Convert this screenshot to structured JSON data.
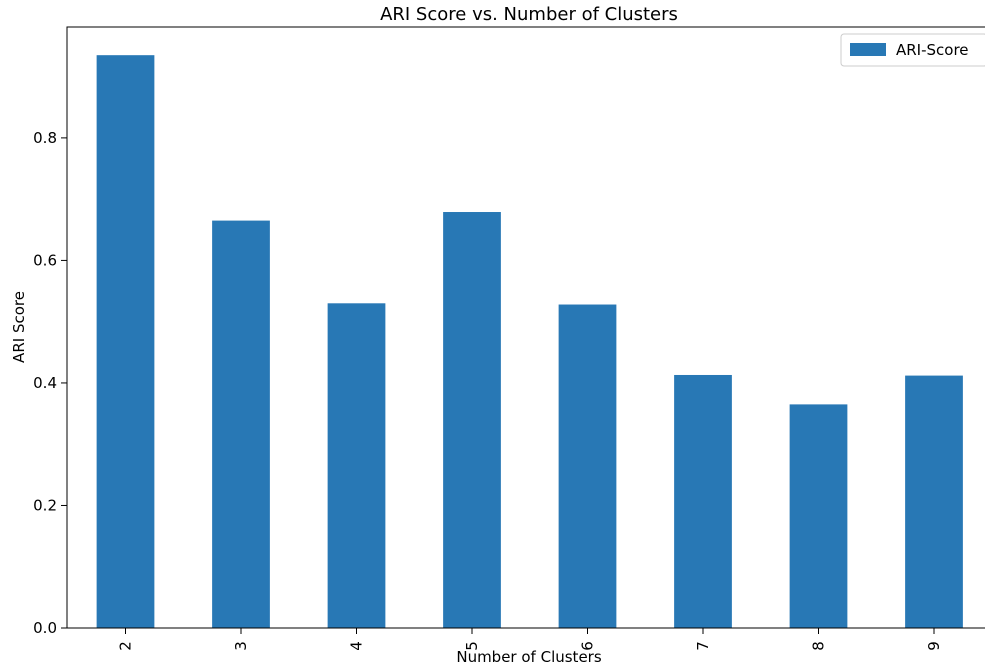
{
  "chart_data": {
    "type": "bar",
    "title": "ARI Score vs. Number of Clusters",
    "xlabel": "Number of Clusters",
    "ylabel": "ARI Score",
    "categories": [
      "2",
      "3",
      "4",
      "5",
      "6",
      "7",
      "8",
      "9"
    ],
    "series": [
      {
        "name": "ARI-Score",
        "values": [
          0.935,
          0.665,
          0.53,
          0.679,
          0.528,
          0.413,
          0.365,
          0.412
        ]
      }
    ],
    "ylim": [
      0,
      0.981
    ],
    "yticks": [
      0.0,
      0.2,
      0.4,
      0.6,
      0.8
    ],
    "ytick_labels": [
      "0.0",
      "0.2",
      "0.4",
      "0.6",
      "0.8"
    ],
    "grid": false,
    "legend_position": "top-right",
    "colors": {
      "bar": "#2878b5"
    }
  }
}
